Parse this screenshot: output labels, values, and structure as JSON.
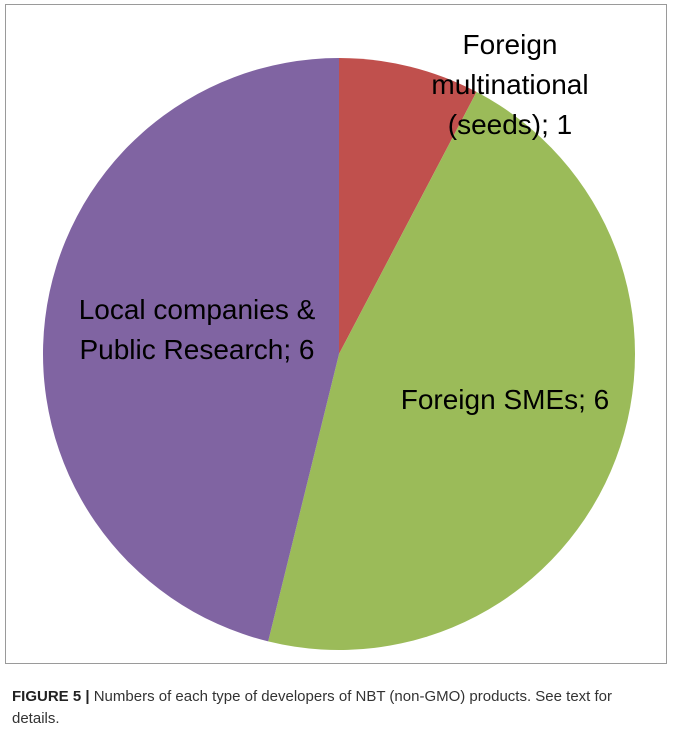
{
  "chart_data": {
    "type": "pie",
    "values": [
      1,
      6,
      6
    ],
    "value_labels": [
      "Foreign multinational (seeds); 1",
      "Foreign SMEs; 6",
      "Local companies & Public Research; 6"
    ],
    "colors": [
      "#c0504d",
      "#9bbb59",
      "#8064a2"
    ],
    "start_angle": 90,
    "direction": "clockwise"
  },
  "caption": {
    "label": "FIGURE 5 |",
    "text": "Numbers of each type of developers of NBT (non-GMO) products. See text for details."
  }
}
